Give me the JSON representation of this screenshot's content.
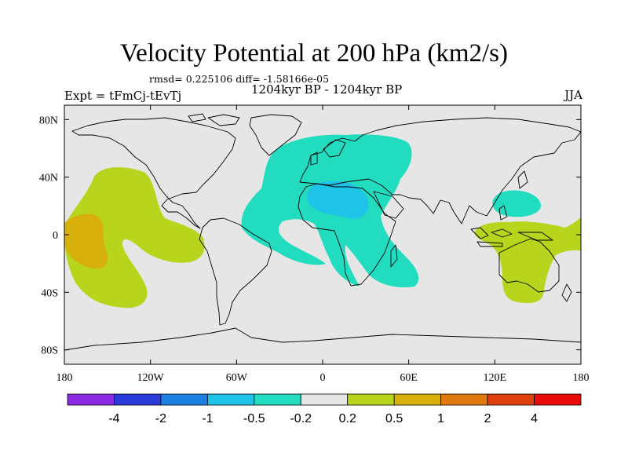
{
  "title": "Velocity Potential at 200 hPa (km2/s)",
  "stats_line": "rmsd= 0.225106 diff= -1.58166e-05",
  "period_line": "1204kyr BP - 1204kyr BP",
  "experiment": "Expt = tFmCj-tEvTj",
  "season": "JJA",
  "map": {
    "projection": "cylindrical-equidistant",
    "land_outline_color": "#000000",
    "background_color": "#e6e6e6",
    "x_ticks": [
      {
        "lon": -180,
        "label": "180"
      },
      {
        "lon": -120,
        "label": "120W"
      },
      {
        "lon": -60,
        "label": "60W"
      },
      {
        "lon": 0,
        "label": "0"
      },
      {
        "lon": 60,
        "label": "60E"
      },
      {
        "lon": 120,
        "label": "120E"
      },
      {
        "lon": 180,
        "label": "180"
      }
    ],
    "y_ticks": [
      {
        "lat": 80,
        "label": "80N"
      },
      {
        "lat": 40,
        "label": "40N"
      },
      {
        "lat": 0,
        "label": "0"
      },
      {
        "lat": -40,
        "label": "40S"
      },
      {
        "lat": -80,
        "label": "80S"
      }
    ]
  },
  "colorbar": {
    "colors": [
      "#8a2be2",
      "#2a3ad8",
      "#1d80e0",
      "#1fc3e8",
      "#22dcc0",
      "#e6e6e6",
      "#b8d41c",
      "#d8b00c",
      "#e07a10",
      "#e04010",
      "#e80c0c"
    ],
    "labels": [
      "-4",
      "-2",
      "-1",
      "-0.5",
      "-0.2",
      "0.2",
      "0.5",
      "1",
      "2",
      "4"
    ]
  },
  "anomalies": [
    {
      "name": "Africa-Atlantic negative",
      "level": -0.2,
      "color": "#22dcc0"
    },
    {
      "name": "Sahara negative core",
      "level": -0.5,
      "color": "#1fc3e8"
    },
    {
      "name": "West Pacific negative",
      "level": -0.2,
      "color": "#22dcc0"
    },
    {
      "name": "East Pacific positive",
      "level": 0.2,
      "color": "#b8d41c"
    },
    {
      "name": "East Pacific positive core",
      "level": 0.5,
      "color": "#d8b00c"
    },
    {
      "name": "Maritime Continent positive",
      "level": 0.2,
      "color": "#b8d41c"
    }
  ]
}
